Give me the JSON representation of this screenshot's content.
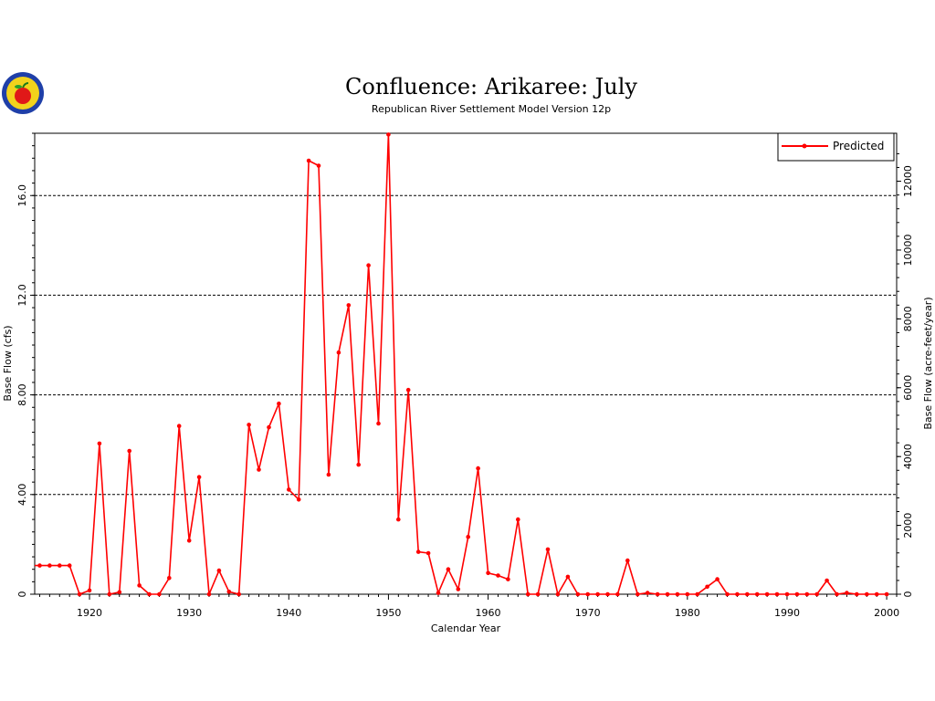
{
  "chart_data": {
    "type": "line",
    "title": "Confluence:  Arikaree:  July",
    "subtitle": "Republican River Settlement Model Version 12p",
    "xlabel": "Calendar Year",
    "ylabel_left": "Base Flow (cfs)",
    "ylabel_right": "Base Flow (acre-feet/year)",
    "xlim": [
      1914.5,
      2001
    ],
    "ylim": [
      0,
      18.5
    ],
    "x_ticks": [
      "1920",
      "1930",
      "1940",
      "1950",
      "1960",
      "1970",
      "1980",
      "1990",
      "2000"
    ],
    "y_ticks_left": [
      "0",
      "4.00",
      "8.00",
      "12.0",
      "16.0"
    ],
    "y_ticks_right": [
      "0",
      "2000",
      "4000",
      "6000",
      "8000",
      "10000",
      "12000"
    ],
    "grid": "horizontal dashed at left ticks",
    "legend_position": "top-right",
    "colors": {
      "series": "#ff0000",
      "axis": "#000000",
      "grid": "#000000"
    },
    "series": [
      {
        "name": "Predicted",
        "x": [
          1914,
          1915,
          1916,
          1917,
          1918,
          1919,
          1920,
          1921,
          1922,
          1923,
          1924,
          1925,
          1926,
          1927,
          1928,
          1929,
          1930,
          1931,
          1932,
          1933,
          1934,
          1935,
          1936,
          1937,
          1938,
          1939,
          1940,
          1941,
          1942,
          1943,
          1944,
          1945,
          1946,
          1947,
          1948,
          1949,
          1950,
          1951,
          1952,
          1953,
          1954,
          1955,
          1956,
          1957,
          1958,
          1959,
          1960,
          1961,
          1962,
          1963,
          1964,
          1965,
          1966,
          1967,
          1968,
          1969,
          1970,
          1971,
          1972,
          1973,
          1974,
          1975,
          1976,
          1977,
          1978,
          1979,
          1980,
          1981,
          1982,
          1983,
          1984,
          1985,
          1986,
          1987,
          1988,
          1989,
          1990,
          1991,
          1992,
          1993,
          1994,
          1995,
          1996,
          1997,
          1998,
          1999,
          2000
        ],
        "values": [
          1.15,
          1.15,
          1.15,
          1.15,
          1.15,
          0.0,
          0.15,
          6.05,
          0.0,
          0.08,
          5.75,
          0.35,
          0.0,
          0.0,
          0.65,
          6.75,
          2.15,
          4.7,
          0.0,
          0.95,
          0.1,
          0.0,
          6.8,
          5.0,
          6.7,
          7.65,
          4.2,
          3.8,
          17.4,
          17.2,
          4.8,
          9.7,
          11.6,
          5.2,
          13.2,
          6.85,
          18.45,
          3.0,
          8.2,
          1.7,
          1.65,
          0.05,
          1.0,
          0.2,
          2.3,
          5.05,
          0.85,
          0.75,
          0.6,
          3.0,
          0.0,
          0.0,
          1.8,
          0.0,
          0.7,
          0.0,
          0.0,
          0.0,
          0.0,
          0.0,
          1.35,
          0.0,
          0.05,
          0.0,
          0.0,
          0.0,
          0.0,
          0.0,
          0.3,
          0.6,
          0.0,
          0.0,
          0.0,
          0.0,
          0.0,
          0.0,
          0.0,
          0.0,
          0.0,
          0.0,
          0.55,
          0.0,
          0.05,
          0.0,
          0.0,
          0.0,
          0.0
        ]
      }
    ]
  }
}
